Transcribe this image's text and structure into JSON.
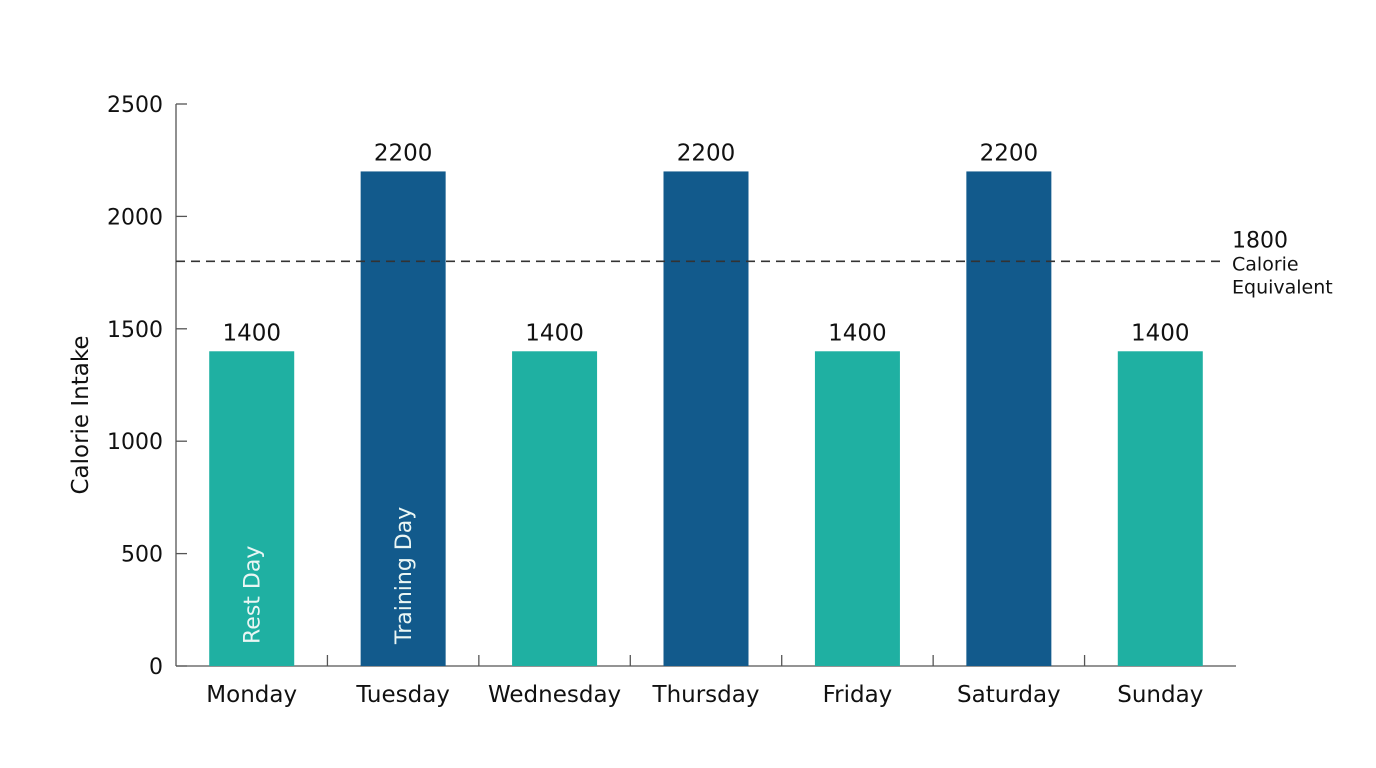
{
  "chart_data": {
    "type": "bar",
    "title": "",
    "xlabel": "",
    "ylabel": "Calorie Intake",
    "ylim": [
      0,
      2500
    ],
    "yticks": [
      0,
      500,
      1000,
      1500,
      2000,
      2500
    ],
    "categories": [
      "Monday",
      "Tuesday",
      "Wednesday",
      "Thursday",
      "Friday",
      "Saturday",
      "Sunday"
    ],
    "values": [
      1400,
      2200,
      1400,
      2200,
      1400,
      2200,
      1400
    ],
    "day_types": [
      "rest",
      "training",
      "rest",
      "training",
      "rest",
      "training",
      "rest"
    ],
    "colors": {
      "rest": "#1fb0a2",
      "training": "#125a8c",
      "axis": "#555555",
      "reference_line": "#333333"
    },
    "bar_annotations": [
      {
        "category": "Monday",
        "text": "Rest Day"
      },
      {
        "category": "Tuesday",
        "text": "Training Day"
      }
    ],
    "reference_line": {
      "value": 1800,
      "label_value": "1800",
      "label_line1": "Calorie",
      "label_line2": "Equivalent",
      "style": "dashed"
    },
    "grid": false,
    "legend": "none"
  }
}
